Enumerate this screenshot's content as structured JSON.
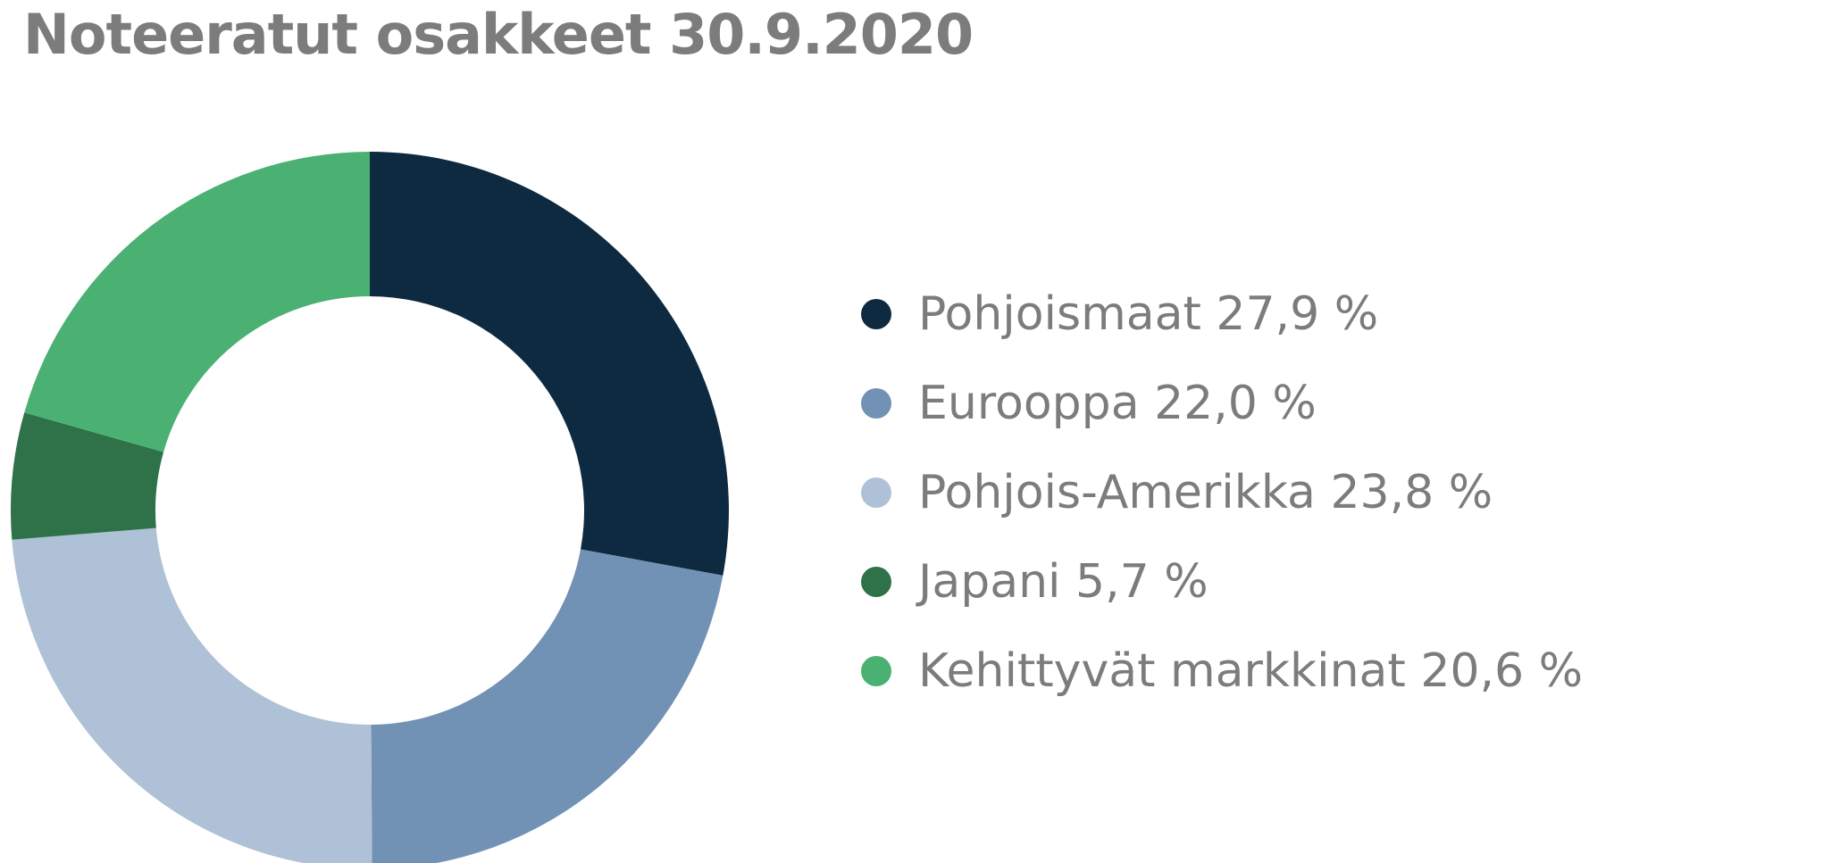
{
  "title": "Noteeratut osakkeet 30.9.2020",
  "chart_data": {
    "type": "pie",
    "donut": true,
    "title": "Noteeratut osakkeet 30.9.2020",
    "unit": "%",
    "legend_position": "right",
    "slices": [
      {
        "label": "Pohjoismaat",
        "value": 27.9,
        "display": "Pohjoismaat 27,9 %",
        "color": "#0e2a40"
      },
      {
        "label": "Eurooppa",
        "value": 22.0,
        "display": "Eurooppa 22,0 %",
        "color": "#7292b5"
      },
      {
        "label": "Pohjois-Amerikka",
        "value": 23.8,
        "display": "Pohjois-Amerikka 23,8 %",
        "color": "#aec1d6"
      },
      {
        "label": "Japani",
        "value": 5.7,
        "display": "Japani 5,7 %",
        "color": "#2f7148"
      },
      {
        "label": "Kehittyvät markkinat",
        "value": 20.6,
        "display": "Kehittyvät markkinat 20,6 %",
        "color": "#4bb172"
      }
    ]
  }
}
